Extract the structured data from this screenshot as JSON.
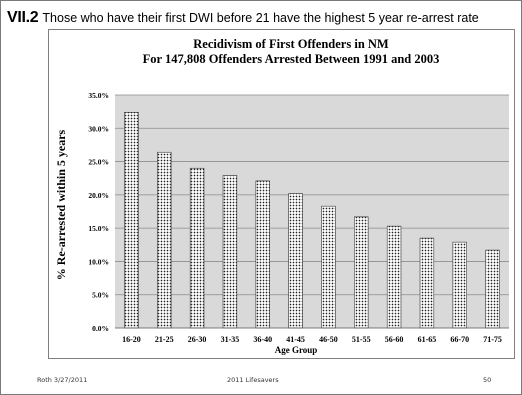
{
  "slide": {
    "number": "VII.2",
    "title": "Those who have their first DWI before 21 have the highest 5 year re-arrest rate",
    "footer_left": "Roth 3/27/2011",
    "footer_center": "2011 Lifesavers",
    "footer_right": "50"
  },
  "chart_data": {
    "type": "bar",
    "title": "Recidivism of First Offenders in NM",
    "subtitle": "For 147,808 Offenders Arrested Between 1991 and 2003",
    "xlabel": "Age Group",
    "ylabel": "% Re-arrested within 5 years",
    "categories": [
      "16-20",
      "21-25",
      "26-30",
      "31-35",
      "36-40",
      "41-45",
      "46-50",
      "51-55",
      "56-60",
      "61-65",
      "66-70",
      "71-75"
    ],
    "values": [
      32.4,
      26.4,
      24.0,
      22.9,
      22.1,
      20.2,
      18.3,
      16.7,
      15.3,
      13.5,
      12.9,
      11.7
    ],
    "ylim": [
      0,
      35
    ],
    "yticks": [
      "0.0%",
      "5.0%",
      "10.0%",
      "15.0%",
      "20.0%",
      "25.0%",
      "30.0%",
      "35.0%"
    ],
    "grid": true,
    "legend": "none",
    "colors": {
      "plot_background": "#d9d9d9",
      "bar_fill": "#ffffff",
      "bar_pattern": "#222222",
      "gridline": "#8c8c8c"
    }
  }
}
